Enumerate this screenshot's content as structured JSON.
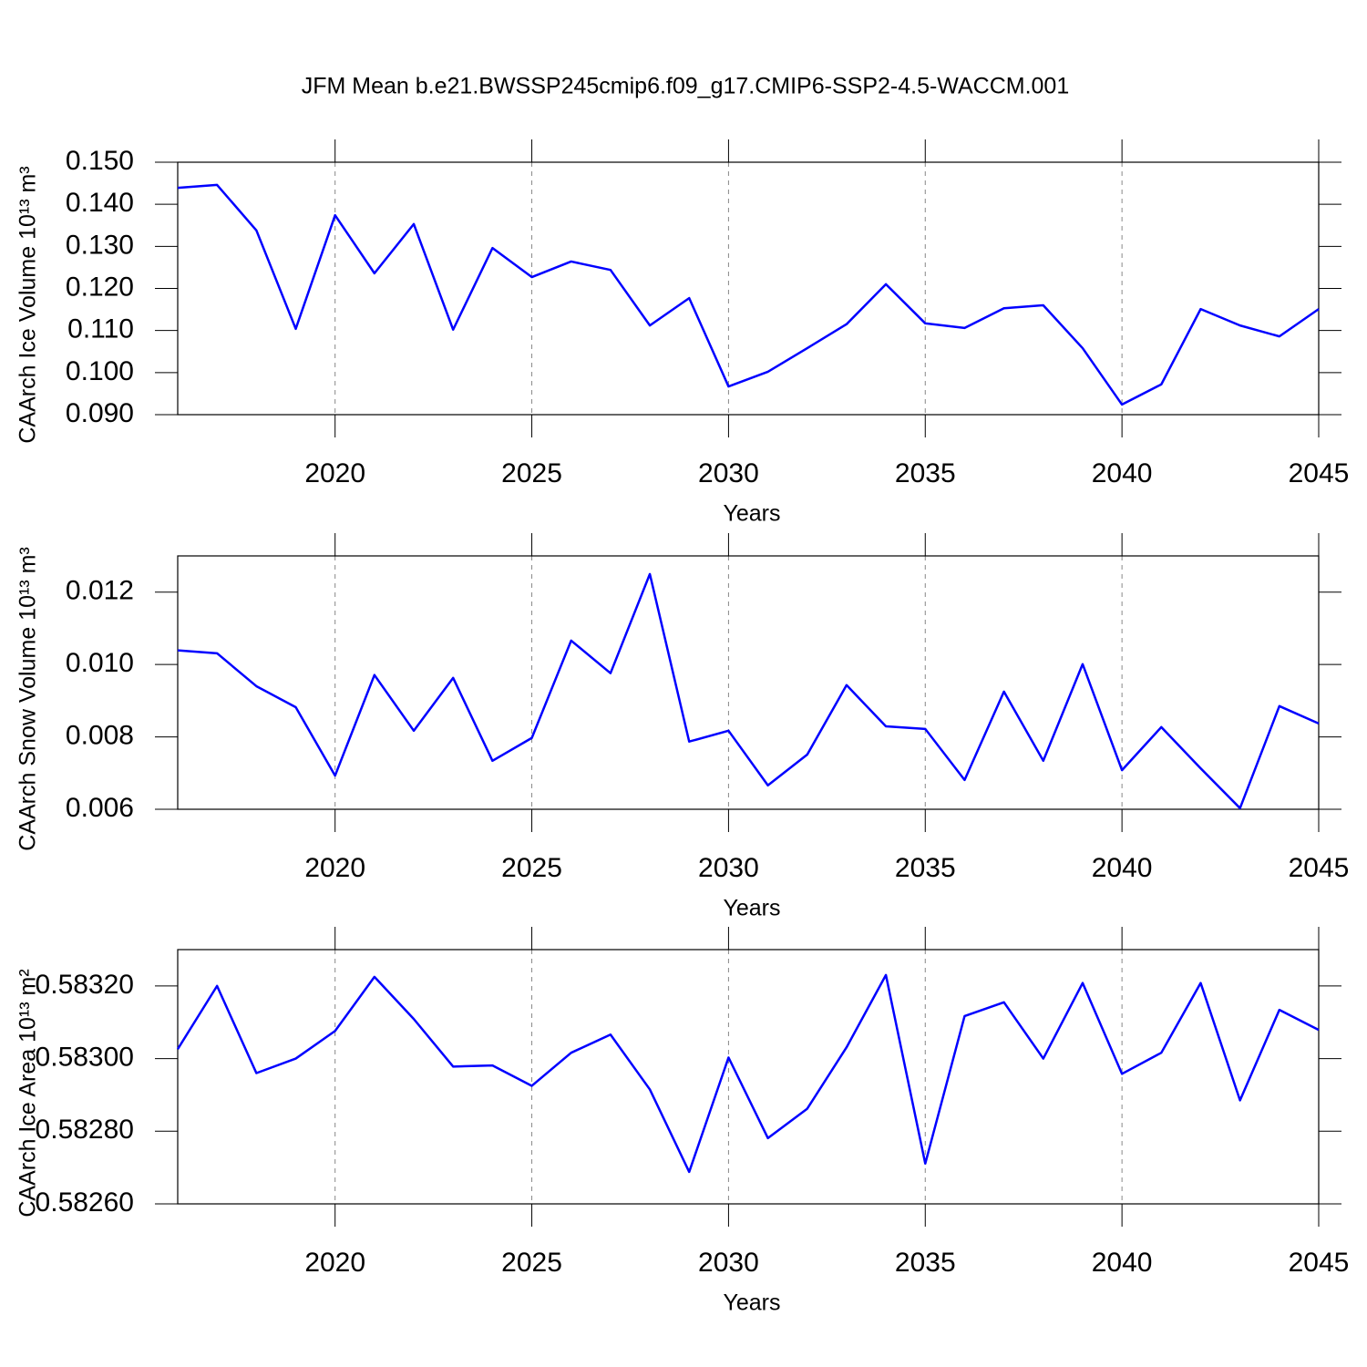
{
  "title": "JFM Mean b.e21.BWSSP245cmip6.f09_g17.CMIP6-SSP2-4.5-WACCM.001",
  "chart_data": [
    {
      "type": "line",
      "ylabel": "CAArch Ice Volume 10¹³ m³",
      "xlabel": "Years",
      "x": [
        2016,
        2017,
        2018,
        2019,
        2020,
        2021,
        2022,
        2023,
        2024,
        2025,
        2026,
        2027,
        2028,
        2029,
        2030,
        2031,
        2032,
        2033,
        2034,
        2035,
        2036,
        2037,
        2038,
        2039,
        2040,
        2041,
        2042,
        2043,
        2044,
        2045
      ],
      "values": [
        0.1439,
        0.1446,
        0.1338,
        0.1104,
        0.1374,
        0.1236,
        0.1353,
        0.1102,
        0.1296,
        0.1227,
        0.1264,
        0.1244,
        0.1112,
        0.1177,
        0.0967,
        0.1002,
        0.1058,
        0.1115,
        0.121,
        0.1117,
        0.1106,
        0.1153,
        0.116,
        0.1058,
        0.0924,
        0.0972,
        0.1151,
        0.1112,
        0.1086,
        0.1151
      ],
      "color": "#0000ff",
      "xlim": [
        2016,
        2045
      ],
      "xticks": [
        2020,
        2025,
        2030,
        2035,
        2040,
        2045
      ],
      "ylim": [
        0.09,
        0.15
      ],
      "yticks": [
        {
          "value": 0.09,
          "label": "0.090"
        },
        {
          "value": 0.1,
          "label": "0.100"
        },
        {
          "value": 0.11,
          "label": "0.110"
        },
        {
          "value": 0.12,
          "label": "0.120"
        },
        {
          "value": 0.13,
          "label": "0.130"
        },
        {
          "value": 0.14,
          "label": "0.140"
        },
        {
          "value": 0.15,
          "label": "0.150"
        }
      ],
      "grid": "x"
    },
    {
      "type": "line",
      "ylabel": "CAArch Snow Volume 10¹³ m³",
      "xlabel": "Years",
      "x": [
        2016,
        2017,
        2018,
        2019,
        2020,
        2021,
        2022,
        2023,
        2024,
        2025,
        2026,
        2027,
        2028,
        2029,
        2030,
        2031,
        2032,
        2033,
        2034,
        2035,
        2036,
        2037,
        2038,
        2039,
        2040,
        2041,
        2042,
        2043,
        2044,
        2045
      ],
      "values": [
        0.01039,
        0.01031,
        0.0094,
        0.00882,
        0.00693,
        0.00971,
        0.00817,
        0.00963,
        0.00734,
        0.00797,
        0.01066,
        0.00976,
        0.0125,
        0.00787,
        0.00817,
        0.00666,
        0.00751,
        0.00943,
        0.00829,
        0.00822,
        0.00681,
        0.00925,
        0.00734,
        0.01001,
        0.00708,
        0.00827,
        0.00713,
        0.00603,
        0.00885,
        0.00837
      ],
      "color": "#0000ff",
      "xlim": [
        2016,
        2045
      ],
      "xticks": [
        2020,
        2025,
        2030,
        2035,
        2040,
        2045
      ],
      "ylim": [
        0.006,
        0.013
      ],
      "yticks": [
        0.006,
        0.008,
        {
          "value": 0.01,
          "label": "0.010"
        },
        0.012
      ],
      "grid": "x"
    },
    {
      "type": "line",
      "ylabel": "CAArch Ice Area 10¹³ m²",
      "xlabel": "Years",
      "x": [
        2016,
        2017,
        2018,
        2019,
        2020,
        2021,
        2022,
        2023,
        2024,
        2025,
        2026,
        2027,
        2028,
        2029,
        2030,
        2031,
        2032,
        2033,
        2034,
        2035,
        2036,
        2037,
        2038,
        2039,
        2040,
        2041,
        2042,
        2043,
        2044,
        2045
      ],
      "values": [
        0.583026,
        0.5832,
        0.58296,
        0.583,
        0.583076,
        0.583225,
        0.583109,
        0.582978,
        0.582981,
        0.582925,
        0.583016,
        0.583066,
        0.582915,
        0.582688,
        0.583003,
        0.582781,
        0.582862,
        0.583031,
        0.58323,
        0.582711,
        0.583117,
        0.583155,
        0.583,
        0.583208,
        0.582958,
        0.583016,
        0.583208,
        0.582885,
        0.583134,
        0.583079
      ],
      "color": "#0000ff",
      "xlim": [
        2016,
        2045
      ],
      "xticks": [
        2020,
        2025,
        2030,
        2035,
        2040,
        2045
      ],
      "ylim": [
        0.5826,
        0.5833
      ],
      "yticks": [
        {
          "value": 0.5826,
          "label": "0.58260"
        },
        {
          "value": 0.5828,
          "label": "0.58280"
        },
        {
          "value": 0.583,
          "label": "0.58300"
        },
        {
          "value": 0.5832,
          "label": "0.58320"
        }
      ],
      "grid": "x"
    }
  ]
}
